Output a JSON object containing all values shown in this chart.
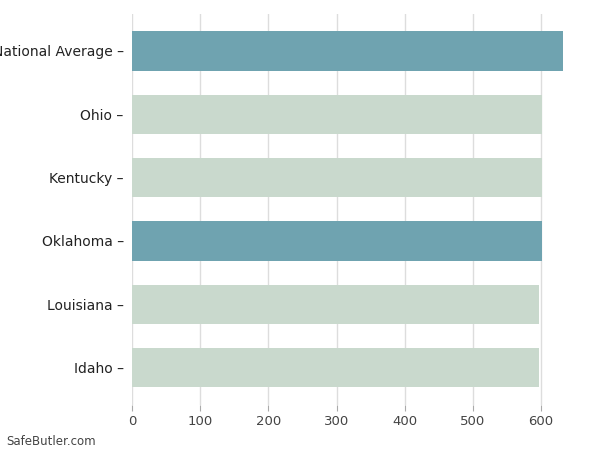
{
  "categories": [
    "Idaho",
    "Louisiana",
    "Oklahoma",
    "Kentucky",
    "Ohio",
    "National Average"
  ],
  "values": [
    597,
    597,
    601,
    601,
    601,
    632
  ],
  "bar_colors": [
    "#c9d9cd",
    "#c9d9cd",
    "#6fa3b0",
    "#c9d9cd",
    "#c9d9cd",
    "#6fa3b0"
  ],
  "background_color": "#ffffff",
  "grid_color": "#dddddd",
  "plot_bg_color": "#ffffff",
  "xlim": [
    0,
    660
  ],
  "xticks": [
    0,
    100,
    200,
    300,
    400,
    500,
    600
  ],
  "footer_text": "SafeButler.com",
  "bar_height": 0.62,
  "figsize": [
    6.0,
    4.5
  ],
  "dpi": 100
}
